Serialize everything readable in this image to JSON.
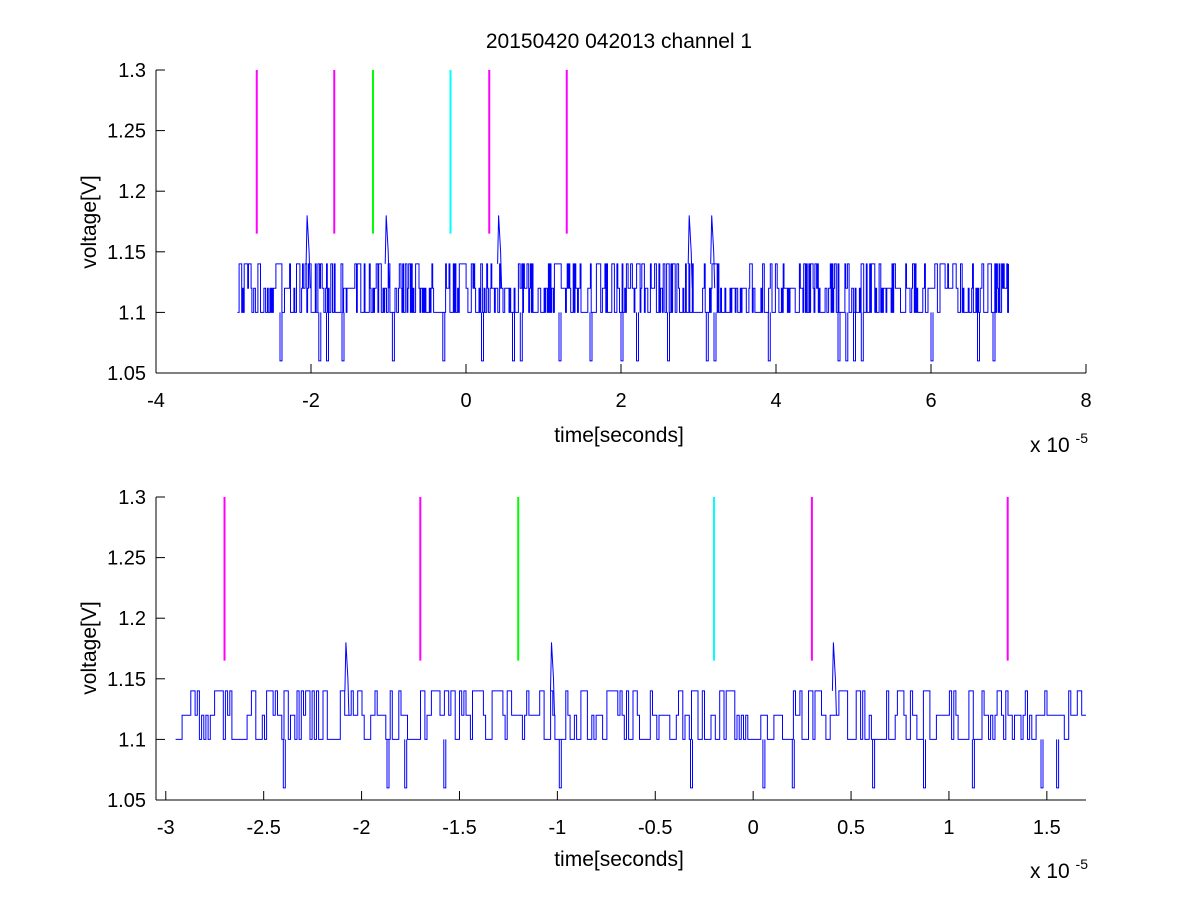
{
  "figure": {
    "title": "20150420 042013 channel 1",
    "background": "#ffffff"
  },
  "chart_data": [
    {
      "type": "line",
      "xlabel": "time[seconds]",
      "ylabel": "voltage[V]",
      "x_multiplier": "x 10",
      "x_multiplier_exp": "-5",
      "xlim": [
        -4,
        8
      ],
      "ylim": [
        1.05,
        1.3
      ],
      "xticks": [
        -4,
        -2,
        0,
        2,
        4,
        6,
        8
      ],
      "xtick_labels": [
        "-4",
        "-2",
        "0",
        "2",
        "4",
        "6",
        "8"
      ],
      "yticks": [
        1.05,
        1.1,
        1.15,
        1.2,
        1.25,
        1.3
      ],
      "ytick_labels": [
        "1.05",
        "1.1",
        "1.15",
        "1.2",
        "1.25",
        "1.3"
      ],
      "grid": false,
      "markers": [
        {
          "x": -2.7,
          "y_from": 1.165,
          "y_to": 1.3,
          "color": "#ff00ff"
        },
        {
          "x": -1.7,
          "y_from": 1.165,
          "y_to": 1.3,
          "color": "#ff00ff"
        },
        {
          "x": -1.2,
          "y_from": 1.165,
          "y_to": 1.3,
          "color": "#00ff00"
        },
        {
          "x": -0.2,
          "y_from": 1.165,
          "y_to": 1.3,
          "color": "#00ffff"
        },
        {
          "x": 0.3,
          "y_from": 1.165,
          "y_to": 1.3,
          "color": "#ff00ff"
        },
        {
          "x": 1.3,
          "y_from": 1.165,
          "y_to": 1.3,
          "color": "#ff00ff"
        }
      ],
      "series": [
        {
          "color": "#0000ff",
          "x_range": [
            -2.95,
            7.0
          ],
          "levels": [
            1.1,
            1.12,
            1.14
          ],
          "dip_to": 1.06,
          "dips": [
            -2.4,
            -1.9,
            -1.8,
            -1.6,
            -0.95,
            -0.3,
            0.2,
            0.6,
            0.7,
            1.2,
            1.6,
            2.0,
            2.2,
            2.6,
            3.1,
            3.2,
            3.9,
            4.8,
            4.9,
            5.0,
            5.1,
            6.0,
            6.6,
            6.8
          ],
          "spikes": [
            {
              "x": -2.05,
              "y": 1.18
            },
            {
              "x": -1.03,
              "y": 1.18
            },
            {
              "x": 0.42,
              "y": 1.18
            },
            {
              "x": 2.88,
              "y": 1.18
            },
            {
              "x": 3.17,
              "y": 1.18
            }
          ]
        }
      ]
    },
    {
      "type": "line",
      "xlabel": "time[seconds]",
      "ylabel": "voltage[V]",
      "x_multiplier": "x 10",
      "x_multiplier_exp": "-5",
      "xlim": [
        -3.05,
        1.7
      ],
      "ylim": [
        1.05,
        1.3
      ],
      "xticks": [
        -3,
        -2.5,
        -2,
        -1.5,
        -1,
        -0.5,
        0,
        0.5,
        1,
        1.5
      ],
      "xtick_labels": [
        "-3",
        "-2.5",
        "-2",
        "-1.5",
        "-1",
        "-0.5",
        "0",
        "0.5",
        "1",
        "1.5"
      ],
      "yticks": [
        1.05,
        1.1,
        1.15,
        1.2,
        1.25,
        1.3
      ],
      "ytick_labels": [
        "1.05",
        "1.1",
        "1.15",
        "1.2",
        "1.25",
        "1.3"
      ],
      "grid": false,
      "markers": [
        {
          "x": -2.7,
          "y_from": 1.165,
          "y_to": 1.3,
          "color": "#ff00ff"
        },
        {
          "x": -1.7,
          "y_from": 1.165,
          "y_to": 1.3,
          "color": "#ff00ff"
        },
        {
          "x": -1.2,
          "y_from": 1.165,
          "y_to": 1.3,
          "color": "#00ff00"
        },
        {
          "x": -0.2,
          "y_from": 1.165,
          "y_to": 1.3,
          "color": "#00ffff"
        },
        {
          "x": 0.3,
          "y_from": 1.165,
          "y_to": 1.3,
          "color": "#ff00ff"
        },
        {
          "x": 1.3,
          "y_from": 1.165,
          "y_to": 1.3,
          "color": "#ff00ff"
        }
      ],
      "series": [
        {
          "color": "#0000ff",
          "x_range": [
            -2.95,
            1.7
          ],
          "levels": [
            1.1,
            1.12,
            1.14
          ],
          "dip_to": 1.06,
          "dips": [
            -2.4,
            -1.87,
            -1.78,
            -1.58,
            -0.99,
            -0.32,
            0.05,
            0.2,
            0.61,
            0.87,
            1.12,
            1.47,
            1.55
          ],
          "spikes": [
            {
              "x": -2.08,
              "y": 1.18
            },
            {
              "x": -1.03,
              "y": 1.18
            },
            {
              "x": 0.41,
              "y": 1.18
            }
          ]
        }
      ]
    }
  ]
}
